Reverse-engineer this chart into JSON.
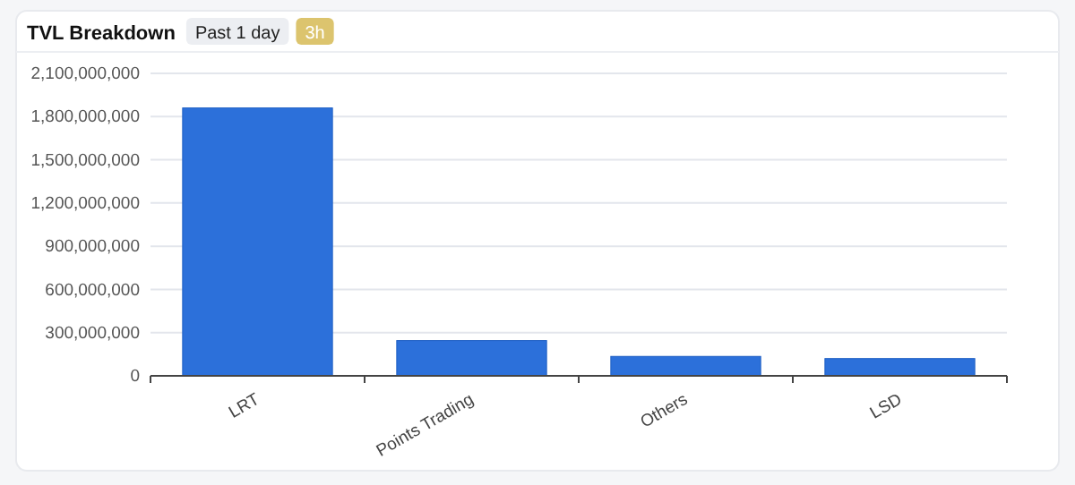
{
  "chart_data": {
    "type": "bar",
    "title": "TVL Breakdown",
    "annotations": [
      "Past 1 day",
      "3h"
    ],
    "categories": [
      "LRT",
      "Points Trading",
      "Others",
      "LSD"
    ],
    "values": [
      1860000000,
      245000000,
      135000000,
      120000000
    ],
    "color": "#2c70da",
    "ylim": [
      0,
      2100000000
    ],
    "yticks": [
      {
        "value": 0,
        "label": "0"
      },
      {
        "value": 300000000,
        "label": "300,000,000"
      },
      {
        "value": 600000000,
        "label": "600,000,000"
      },
      {
        "value": 900000000,
        "label": "900,000,000"
      },
      {
        "value": 1200000000,
        "label": "1,200,000,000"
      },
      {
        "value": 1500000000,
        "label": "1,500,000,000"
      },
      {
        "value": 1800000000,
        "label": "1,800,000,000"
      },
      {
        "value": 2100000000,
        "label": "2,100,000,000"
      }
    ],
    "grid": "y"
  }
}
